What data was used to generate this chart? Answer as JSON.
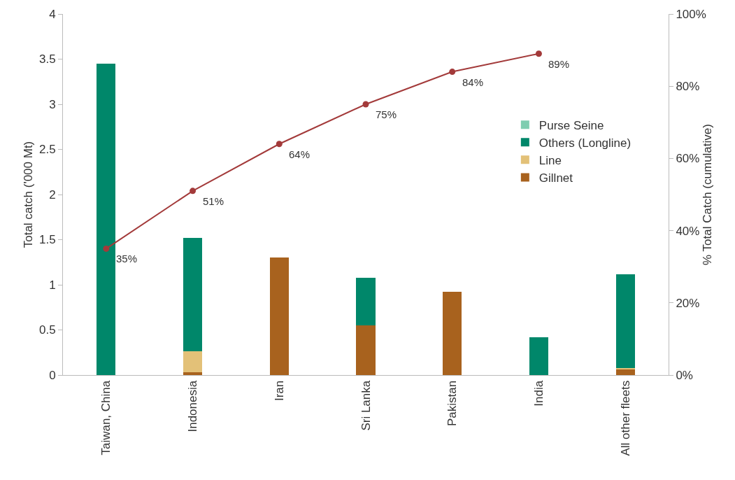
{
  "chart_data": {
    "type": "bar",
    "stacked": true,
    "ylabel": "Total catch ('000 Mt)",
    "y2label": "% Total Catch (cumulative)",
    "categories": [
      "Taiwan, China",
      "Indonesia",
      "Iran",
      "Sri Lanka",
      "Pakistan",
      "India",
      "All other fleets"
    ],
    "series": [
      {
        "name": "Gillnet",
        "color": "#a8621e",
        "values": [
          0,
          0.03,
          1.3,
          0.55,
          0.92,
          0,
          0.06
        ]
      },
      {
        "name": "Line",
        "color": "#e3c178",
        "values": [
          0,
          0.23,
          0,
          0,
          0,
          0,
          0.02
        ]
      },
      {
        "name": "Others (Longline)",
        "color": "#00876a",
        "values": [
          3.45,
          1.26,
          0,
          0.53,
          0,
          0.42,
          1.04
        ]
      },
      {
        "name": "Purse Seine",
        "color": "#7fcdb0",
        "values": [
          0,
          0,
          0,
          0,
          0,
          0,
          0
        ]
      },
      {
        "type": "line",
        "axis": "y2",
        "color": "#a33a3a",
        "marker": "circle",
        "values": [
          35,
          51,
          64,
          75,
          84,
          89,
          null
        ],
        "value_labels": [
          "35%",
          "51%",
          "64%",
          "75%",
          "84%",
          "89%",
          null
        ]
      }
    ],
    "ylim": [
      0,
      4
    ],
    "yticks": [
      0,
      0.5,
      1,
      1.5,
      2,
      2.5,
      3,
      3.5,
      4
    ],
    "y2lim": [
      0,
      100
    ],
    "y2ticks": [
      {
        "value": 0,
        "label": "0%"
      },
      {
        "value": 20,
        "label": "20%"
      },
      {
        "value": 40,
        "label": "40%"
      },
      {
        "value": 60,
        "label": "60%"
      },
      {
        "value": 80,
        "label": "80%"
      },
      {
        "value": 100,
        "label": "100%"
      }
    ],
    "grid": false,
    "legend": "right"
  }
}
